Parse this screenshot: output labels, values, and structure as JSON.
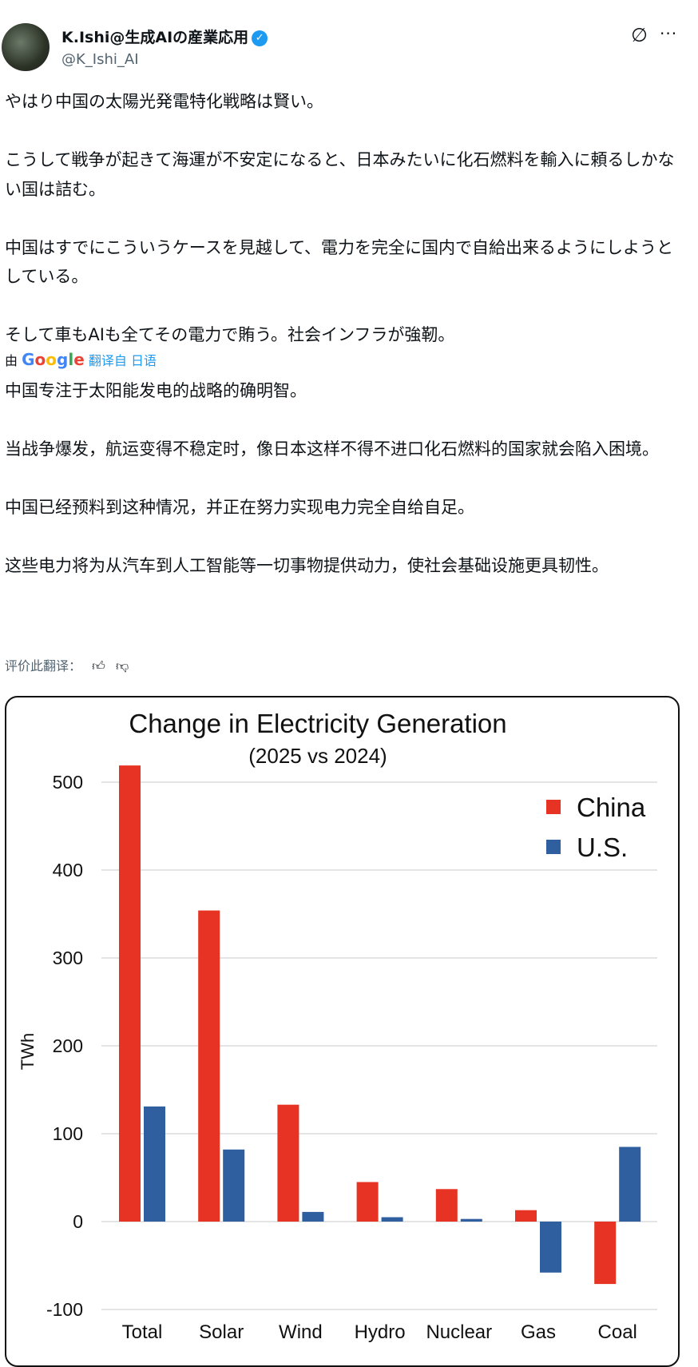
{
  "author": {
    "name": "K.Ishi@生成AIの産業応用",
    "handle": "@K_Ishi_AI",
    "verified": true
  },
  "icons": {
    "grok": "grok-icon",
    "more": "more-icon"
  },
  "original_text": [
    "やはり中国の太陽光発電特化戦略は賢い。",
    "こうして戦争が起きて海運が不安定になると、日本みたいに化石燃料を輸入に頼るしかない国は詰む。",
    "中国はすでにこういうケースを見越して、電力を完全に国内で自給出来るようにしようとしている。",
    "そして車もAIも全てその電力で賄う。社会インフラが強靭。"
  ],
  "translation": {
    "by": "由",
    "provider": "Google",
    "link": "翻译自 日语",
    "paragraphs": [
      "中国专注于太阳能发电的战略的确明智。",
      "当战争爆发，航运变得不稳定时，像日本这样不得不进口化石燃料的国家就会陷入困境。",
      "中国已经预料到这种情况，并正在努力实现电力完全自给自足。",
      "这些电力将为从汽车到人工智能等一切事物提供动力，使社会基础设施更具韧性。"
    ],
    "rate_label": "评价此翻译："
  },
  "chart_data": {
    "type": "bar",
    "title": "Change in Electricity Generation",
    "subtitle": "(2025 vs 2024)",
    "ylabel": "TWh",
    "xlabel": "",
    "ylim": [
      -100,
      500
    ],
    "yticks": [
      -100,
      0,
      100,
      200,
      300,
      400,
      500
    ],
    "grid": true,
    "legend_position": "top-right",
    "categories": [
      "Total",
      "Solar",
      "Wind",
      "Hydro",
      "Nuclear",
      "Gas",
      "Coal"
    ],
    "series": [
      {
        "name": "China",
        "color": "#e63323",
        "values": [
          519,
          354,
          133,
          45,
          37,
          13,
          -71
        ]
      },
      {
        "name": "U.S.",
        "color": "#2f5f9e",
        "values": [
          131,
          82,
          11,
          5,
          3,
          -58,
          85
        ]
      }
    ]
  }
}
